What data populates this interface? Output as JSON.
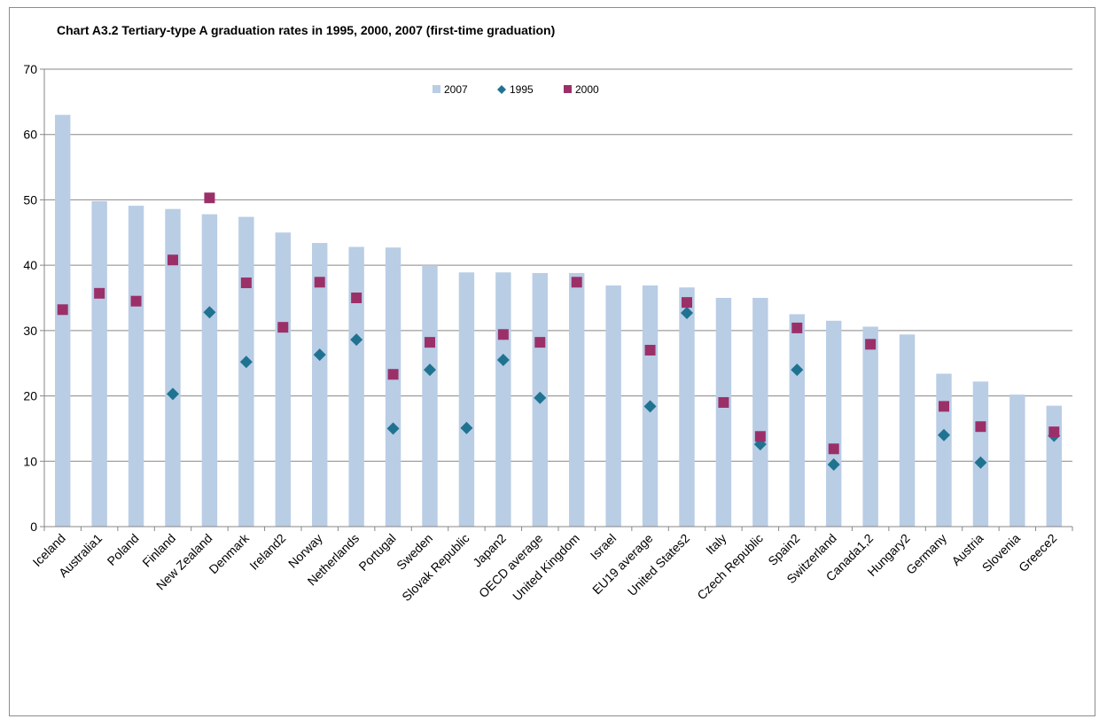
{
  "chart_data": {
    "type": "bar",
    "title": "Chart A3.2 Tertiary-type A graduation rates in 1995, 2000, 2007 (first-time graduation)",
    "xlabel": "",
    "ylabel": "",
    "ylim": [
      0,
      70
    ],
    "yticks": [
      0,
      10,
      20,
      30,
      40,
      50,
      60,
      70
    ],
    "grid": true,
    "legend_position": "top-center",
    "categories": [
      "Iceland",
      "Australia1",
      "Poland",
      "Finland",
      "New Zealand",
      "Denmark",
      "Ireland2",
      "Norway",
      "Netherlands",
      "Portugal",
      "Sweden",
      "Slovak Republic",
      "Japan2",
      "OECD average",
      "United Kingdom",
      "Israel",
      "EU19 average",
      "United States2",
      "Italy",
      "Czech Republic",
      "Spain2",
      "Switzerland",
      "Canada1,2",
      "Hungary2",
      "Germany",
      "Austria",
      "Slovenia",
      "Greece2"
    ],
    "series": [
      {
        "name": "2007",
        "kind": "bar",
        "color": "#b9cde5",
        "values": [
          63,
          49.8,
          49.1,
          48.6,
          47.8,
          47.4,
          45,
          43.4,
          42.8,
          42.7,
          40,
          38.9,
          38.9,
          38.8,
          38.8,
          36.9,
          36.9,
          36.6,
          35,
          35,
          32.5,
          31.5,
          30.6,
          29.4,
          23.4,
          22.2,
          20.2,
          18.5
        ]
      },
      {
        "name": "1995",
        "kind": "marker",
        "shape": "diamond",
        "color": "#1f7391",
        "values": [
          null,
          null,
          null,
          20.3,
          32.8,
          25.2,
          null,
          26.3,
          28.6,
          15,
          24,
          15.1,
          25.5,
          19.7,
          null,
          null,
          18.4,
          32.7,
          null,
          12.6,
          24,
          9.5,
          null,
          null,
          14,
          9.8,
          null,
          13.9
        ]
      },
      {
        "name": "2000",
        "kind": "marker",
        "shape": "square",
        "color": "#9b3069",
        "values": [
          33.2,
          35.7,
          34.5,
          40.8,
          50.3,
          37.3,
          30.5,
          37.4,
          35,
          23.3,
          28.2,
          null,
          29.4,
          28.2,
          37.4,
          null,
          27,
          34.3,
          19,
          13.8,
          30.4,
          11.9,
          27.9,
          null,
          18.4,
          15.3,
          null,
          14.5
        ]
      }
    ]
  }
}
